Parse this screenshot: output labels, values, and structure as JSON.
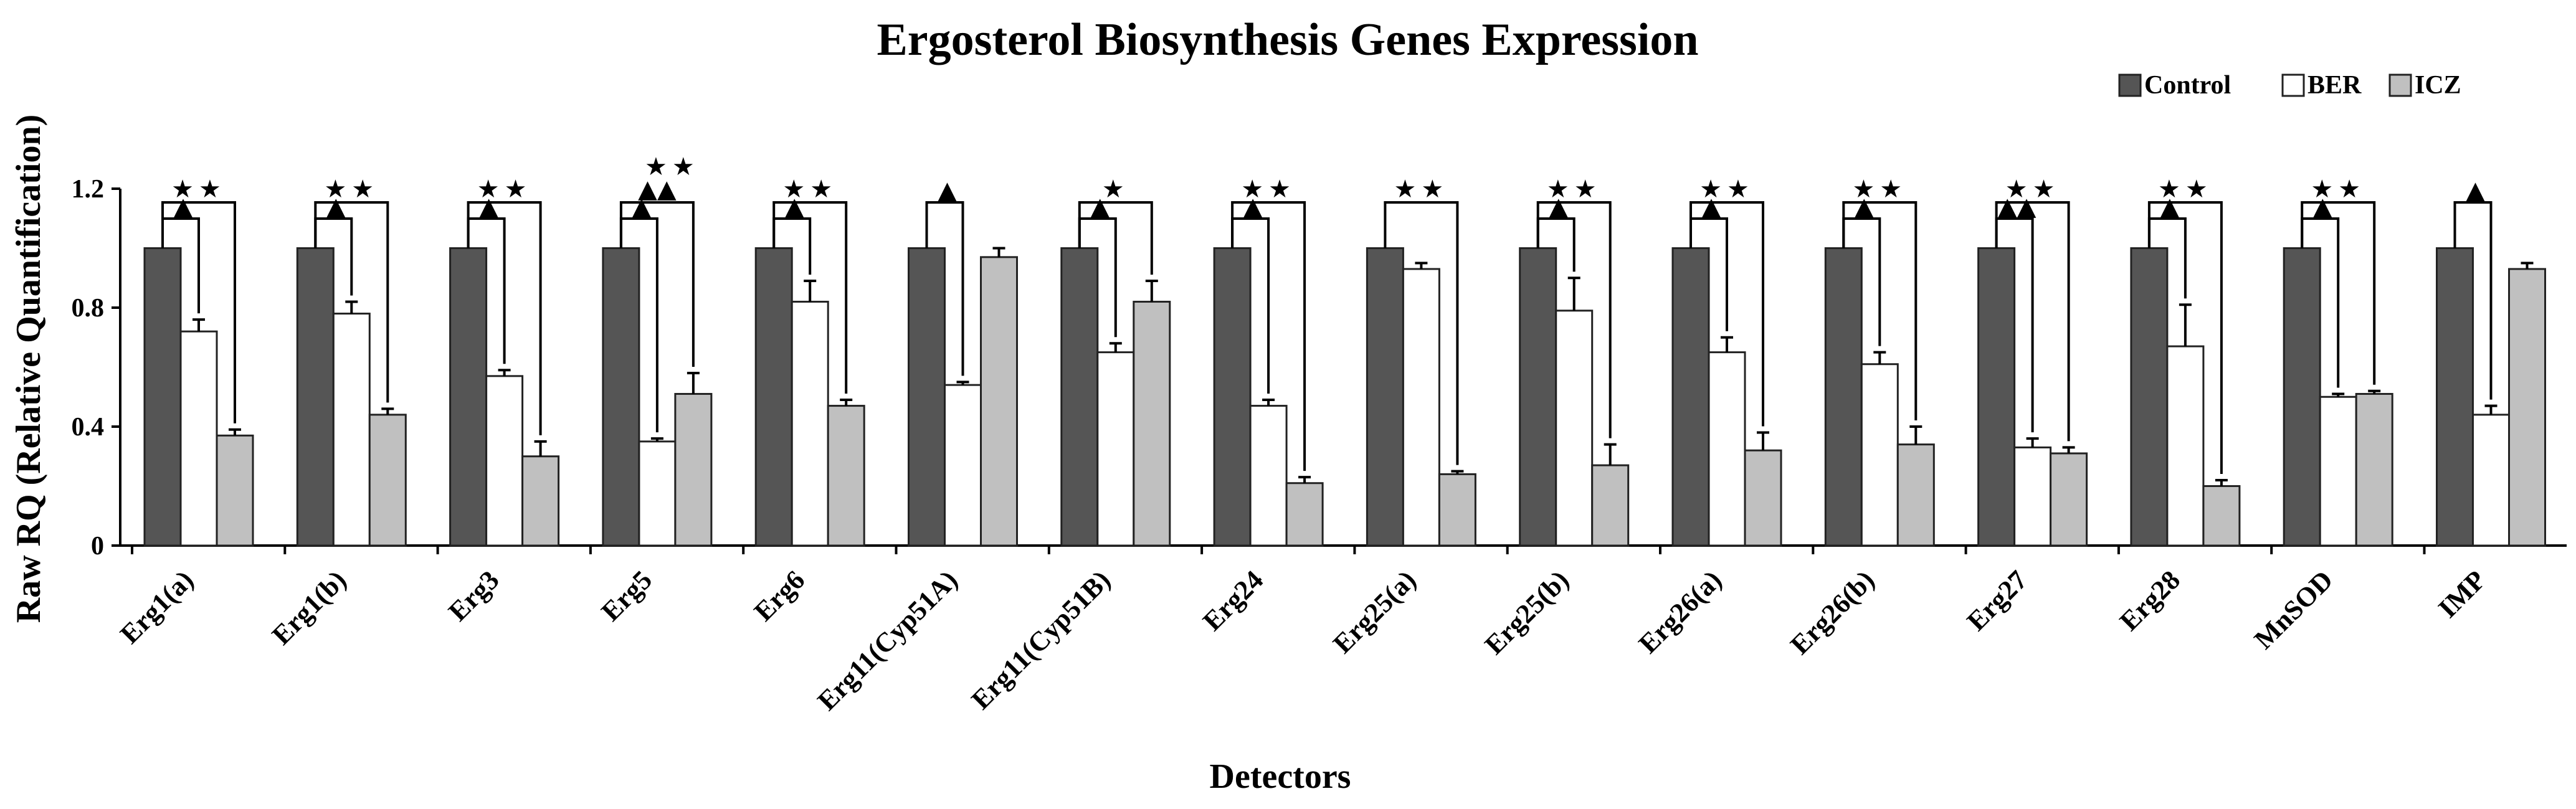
{
  "chart_data": {
    "type": "bar",
    "title": "Ergosterol Biosynthesis Genes Expression",
    "xlabel": "Detectors",
    "ylabel": "Raw RQ (Relative Quantification)",
    "ylim": [
      0,
      1.2
    ],
    "yticks": [
      "0",
      "0.4",
      "0.8",
      "1.2"
    ],
    "ytick_values": [
      0,
      0.4,
      0.8,
      1.2
    ],
    "legend_position": "top-right",
    "categories": [
      "Erg1(a)",
      "Erg1(b)",
      "Erg3",
      "Erg5",
      "Erg6",
      "Erg11(Cyp51A)",
      "Erg11(Cyp51B)",
      "Erg24",
      "Erg25(a)",
      "Erg25(b)",
      "Erg26(a)",
      "Erg26(b)",
      "Erg27",
      "Erg28",
      "MnSOD",
      "IMP"
    ],
    "series": [
      {
        "name": "Control",
        "color": "#555555",
        "values": [
          1,
          1,
          1,
          1,
          1,
          1,
          1,
          1,
          1,
          1,
          1,
          1,
          1,
          1,
          1,
          1
        ],
        "errors": [
          0,
          0,
          0,
          0,
          0,
          0,
          0,
          0,
          0,
          0,
          0,
          0,
          0,
          0,
          0,
          0
        ]
      },
      {
        "name": "BER",
        "color": "#ffffff",
        "values": [
          0.72,
          0.78,
          0.57,
          0.35,
          0.82,
          0.54,
          0.65,
          0.47,
          0.93,
          0.79,
          0.65,
          0.61,
          0.33,
          0.67,
          0.5,
          0.44
        ],
        "errors": [
          0.04,
          0.04,
          0.02,
          0.01,
          0.07,
          0.01,
          0.03,
          0.02,
          0.02,
          0.11,
          0.05,
          0.04,
          0.03,
          0.14,
          0.01,
          0.03
        ]
      },
      {
        "name": "ICZ",
        "color": "#c0c0c0",
        "values": [
          0.37,
          0.44,
          0.3,
          0.51,
          0.47,
          0.97,
          0.82,
          0.21,
          0.24,
          0.27,
          0.32,
          0.34,
          0.31,
          0.2,
          0.51,
          0.93
        ],
        "errors": [
          0.02,
          0.02,
          0.05,
          0.07,
          0.02,
          0.03,
          0.07,
          0.02,
          0.01,
          0.07,
          0.06,
          0.06,
          0.02,
          0.02,
          0.01,
          0.02
        ]
      }
    ],
    "annotations": [
      {
        "inner": "▲",
        "outer": "★★"
      },
      {
        "inner": "▲",
        "outer": "★★"
      },
      {
        "inner": "▲",
        "outer": "★★"
      },
      {
        "inner": "▲",
        "outer": "▲▲",
        "outer_extra": "★★"
      },
      {
        "inner": "▲",
        "outer": "★★"
      },
      {
        "inner": "▲",
        "outer": ""
      },
      {
        "inner": "▲",
        "outer": "★"
      },
      {
        "inner": "▲",
        "outer": "★★"
      },
      {
        "inner": "",
        "outer": "★★"
      },
      {
        "inner": "▲",
        "outer": "★★"
      },
      {
        "inner": "▲",
        "outer": "★★"
      },
      {
        "inner": "▲",
        "outer": "★★"
      },
      {
        "inner": "▲▲",
        "outer": "★★"
      },
      {
        "inner": "▲",
        "outer": "★★"
      },
      {
        "inner": "▲",
        "outer": "★★"
      },
      {
        "inner": "▲",
        "outer": ""
      }
    ]
  }
}
